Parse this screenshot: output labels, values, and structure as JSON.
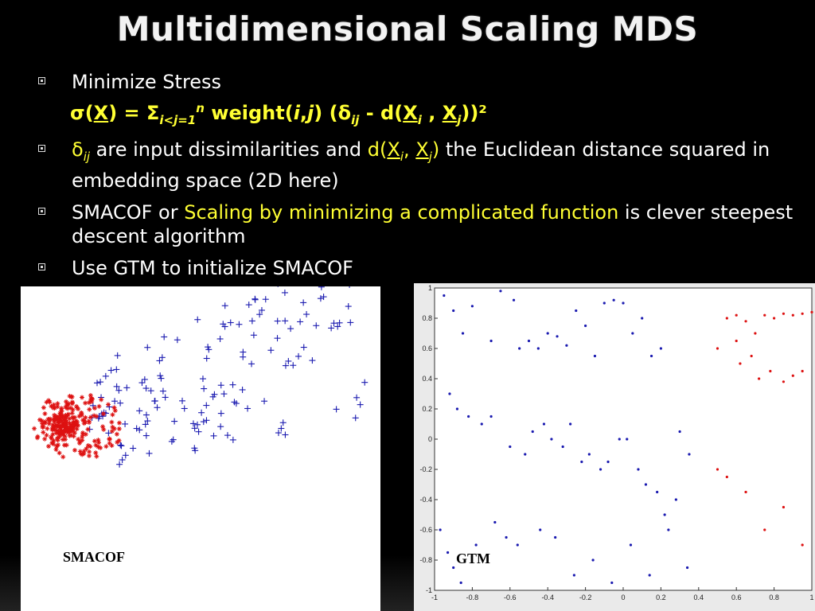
{
  "slide": {
    "title": "Multidimensional Scaling MDS",
    "bullets": [
      {
        "text": "Minimize Stress"
      },
      {
        "formula": {
          "sigma": "σ",
          "X": "X",
          "eq": ") = ",
          "Sigma": "Σ",
          "sub_ij": "i<j=1",
          "sup_n": "n",
          "weight": " weight(",
          "i": "i",
          "comma": ",",
          "j": "j",
          "close_delta": ") (δ",
          "sub_ij2": "ij",
          "minus_d": " - d(",
          "Xi": "X",
          "si": "i",
          "sep": " , ",
          "Xj": "X",
          "sj": "j",
          "end": "))²"
        }
      },
      {
        "delta": "δ",
        "ij": "ij",
        "text1": " are input dissimilarities and ",
        "d": "d(",
        "Xi": "X",
        "si": "i",
        "sep": ", ",
        "Xj": "X",
        "sj": "j",
        "close": ")",
        "text2": " the Euclidean distance squared in embedding space (2D here)"
      },
      {
        "text1": "SMACOF or ",
        "highlight": "Scaling by minimizing a complicated function",
        "text2": " is clever steepest descent algorithm"
      },
      {
        "text": "Use GTM to initialize SMACOF"
      }
    ]
  },
  "plots": {
    "smacof": {
      "label": "SMACOF"
    },
    "gtm": {
      "label": "GTM",
      "x_ticks": [
        "-1",
        "-0.8",
        "-0.6",
        "-0.4",
        "-0.2",
        "0",
        "0.2",
        "0.4",
        "0.6",
        "0.8",
        "1"
      ],
      "y_ticks": [
        "1",
        "0.8",
        "0.6",
        "0.4",
        "0.2",
        "0",
        "-0.2",
        "-0.4",
        "-0.6",
        "-0.8",
        "-1"
      ]
    }
  },
  "colors": {
    "blue_points": "#1a1ab0",
    "red_points": "#dd1111",
    "highlight": "#ffff33"
  },
  "chart_data": [
    {
      "type": "scatter",
      "label": "SMACOF",
      "series": [
        {
          "marker": "+",
          "color": "#1a1ab0",
          "x": [],
          "y": []
        },
        {
          "marker": "*",
          "color": "#dd1111",
          "x": [],
          "y": []
        }
      ]
    },
    {
      "type": "scatter",
      "label": "GTM",
      "xlim": [
        -1,
        1
      ],
      "ylim": [
        -1,
        1
      ],
      "series": [
        {
          "marker": "•",
          "color": "#1a1ab0",
          "x": [
            -0.95,
            -0.9,
            -0.8,
            -0.85,
            -0.7,
            -0.65,
            -0.58,
            -0.55,
            -0.5,
            -0.45,
            -0.4,
            -0.35,
            -0.3,
            -0.25,
            -0.2,
            -0.15,
            -0.1,
            -0.05,
            0,
            0.05,
            0.1,
            0.15,
            0.2,
            0.3,
            0.35,
            -0.92,
            -0.88,
            -0.82,
            -0.75,
            -0.7,
            -0.6,
            -0.52,
            -0.48,
            -0.42,
            -0.38,
            -0.32,
            -0.28,
            -0.22,
            -0.18,
            -0.12,
            -0.08,
            -0.02,
            0.02,
            0.08,
            0.12,
            0.18,
            0.22,
            0.28,
            -0.97,
            -0.93,
            -0.9,
            -0.86,
            -0.78,
            -0.68,
            -0.62,
            -0.56,
            -0.44,
            -0.36,
            -0.26,
            -0.16,
            -0.06,
            0.04,
            0.14,
            0.24,
            0.34
          ],
          "y": [
            0.95,
            0.85,
            0.88,
            0.7,
            0.65,
            0.98,
            0.92,
            0.6,
            0.65,
            0.6,
            0.7,
            0.68,
            0.62,
            0.85,
            0.75,
            0.55,
            0.9,
            0.92,
            0.9,
            0.7,
            0.8,
            0.55,
            0.6,
            0.05,
            -0.1,
            0.3,
            0.2,
            0.15,
            0.1,
            0.15,
            -0.05,
            -0.1,
            0.05,
            0.1,
            0.0,
            -0.05,
            0.1,
            -0.15,
            -0.1,
            -0.2,
            -0.15,
            0.0,
            0.0,
            -0.2,
            -0.3,
            -0.35,
            -0.5,
            -0.4,
            -0.6,
            -0.75,
            -0.85,
            -0.95,
            -0.7,
            -0.55,
            -0.65,
            -0.7,
            -0.6,
            -0.65,
            -0.9,
            -0.8,
            -0.95,
            -0.7,
            -0.9,
            -0.6,
            -0.85
          ]
        },
        {
          "marker": "•",
          "color": "#dd1111",
          "x": [
            0.55,
            0.6,
            0.65,
            0.7,
            0.75,
            0.8,
            0.85,
            0.9,
            0.95,
            1.0,
            0.5,
            0.6,
            0.62,
            0.68,
            0.72,
            0.78,
            0.85,
            0.9,
            0.95,
            0.5,
            0.55,
            0.65,
            0.75,
            0.85,
            0.95
          ],
          "y": [
            0.8,
            0.82,
            0.78,
            0.7,
            0.82,
            0.8,
            0.83,
            0.82,
            0.83,
            0.84,
            0.6,
            0.65,
            0.5,
            0.55,
            0.4,
            0.45,
            0.38,
            0.42,
            0.45,
            -0.2,
            -0.25,
            -0.35,
            -0.6,
            -0.45,
            -0.7
          ]
        }
      ]
    }
  ]
}
